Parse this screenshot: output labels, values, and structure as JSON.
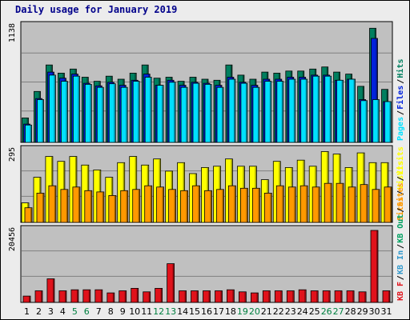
{
  "title": "Daily usage for January 2019",
  "colors": {
    "panel_bg": "#c0c0c0",
    "hits": "#007f5f",
    "files": "#0022dd",
    "pages": "#00e0ff",
    "visits": "#ffff00",
    "sites": "#ff9900",
    "kbin": "#3399cc",
    "kbout": "#00a060",
    "kbf": "#e0121b",
    "weekend_day": "#008040",
    "weekday": "#000000"
  },
  "chart_data": [
    {
      "type": "bar",
      "panel": "hits-files-pages",
      "categories": [
        "1",
        "2",
        "3",
        "4",
        "5",
        "6",
        "7",
        "8",
        "9",
        "10",
        "11",
        "12",
        "13",
        "14",
        "15",
        "16",
        "17",
        "18",
        "19",
        "20",
        "21",
        "22",
        "23",
        "24",
        "25",
        "26",
        "27",
        "28",
        "29",
        "30",
        "31"
      ],
      "y_max_label": "1138",
      "ylim": [
        0,
        1138
      ],
      "legend": [
        {
          "name": "Pages",
          "key": "pages"
        },
        {
          "name": "/",
          "key": "sep"
        },
        {
          "name": "Files",
          "key": "files"
        },
        {
          "name": "/",
          "key": "sep"
        },
        {
          "name": "Hits",
          "key": "hits"
        }
      ],
      "series": [
        {
          "name": "Hits",
          "values": [
            240,
            500,
            760,
            680,
            720,
            640,
            600,
            650,
            620,
            680,
            760,
            630,
            640,
            600,
            640,
            620,
            610,
            760,
            660,
            620,
            690,
            680,
            700,
            700,
            720,
            740,
            690,
            670,
            550,
            1120,
            520
          ]
        },
        {
          "name": "Files",
          "values": [
            180,
            430,
            690,
            630,
            670,
            580,
            555,
            590,
            560,
            610,
            670,
            560,
            610,
            560,
            590,
            580,
            560,
            640,
            590,
            560,
            620,
            620,
            640,
            640,
            660,
            660,
            610,
            620,
            420,
            1020,
            400
          ]
        },
        {
          "name": "Pages",
          "values": [
            170,
            420,
            660,
            600,
            650,
            570,
            540,
            575,
            540,
            600,
            640,
            560,
            590,
            540,
            580,
            570,
            540,
            620,
            580,
            540,
            600,
            600,
            620,
            620,
            650,
            650,
            610,
            620,
            410,
            420,
            400
          ]
        }
      ]
    },
    {
      "type": "bar",
      "panel": "visits-sites",
      "categories": [
        "1",
        "2",
        "3",
        "4",
        "5",
        "6",
        "7",
        "8",
        "9",
        "10",
        "11",
        "12",
        "13",
        "14",
        "15",
        "16",
        "17",
        "18",
        "19",
        "20",
        "21",
        "22",
        "23",
        "24",
        "25",
        "26",
        "27",
        "28",
        "29",
        "30",
        "31"
      ],
      "y_max_label": "295",
      "ylim": [
        0,
        295
      ],
      "legend": [
        {
          "name": "Sites",
          "key": "sites"
        },
        {
          "name": "/",
          "key": "sep"
        },
        {
          "name": "Visits",
          "key": "visits"
        }
      ],
      "series": [
        {
          "name": "Visits",
          "values": [
            80,
            185,
            270,
            250,
            270,
            235,
            215,
            185,
            245,
            270,
            235,
            260,
            210,
            245,
            200,
            225,
            230,
            260,
            230,
            230,
            175,
            250,
            225,
            255,
            230,
            290,
            280,
            225,
            285,
            245,
            245
          ]
        },
        {
          "name": "Sites",
          "values": [
            60,
            120,
            150,
            135,
            145,
            130,
            125,
            110,
            130,
            135,
            150,
            145,
            135,
            130,
            150,
            130,
            135,
            150,
            140,
            140,
            120,
            150,
            145,
            150,
            145,
            160,
            160,
            145,
            155,
            135,
            145
          ]
        }
      ]
    },
    {
      "type": "bar",
      "panel": "kbytes",
      "categories": [
        "1",
        "2",
        "3",
        "4",
        "5",
        "6",
        "7",
        "8",
        "9",
        "10",
        "11",
        "12",
        "13",
        "14",
        "15",
        "16",
        "17",
        "18",
        "19",
        "20",
        "21",
        "22",
        "23",
        "24",
        "25",
        "26",
        "27",
        "28",
        "29",
        "30",
        "31"
      ],
      "y_max_label": "20456",
      "ylim": [
        0,
        20456
      ],
      "legend": [
        {
          "name": "KB F",
          "key": "kbf"
        },
        {
          "name": "/",
          "key": "sep"
        },
        {
          "name": "KB In",
          "key": "kbin"
        },
        {
          "name": "/",
          "key": "sep"
        },
        {
          "name": "KB Out",
          "key": "kbout"
        },
        {
          "name": "/",
          "key": "sep"
        },
        {
          "name": "Sites",
          "key": "sites"
        },
        {
          "name": "/",
          "key": "sep"
        },
        {
          "name": "Visits",
          "key": "visits"
        }
      ],
      "series": [
        {
          "name": "KB F",
          "values": [
            1800,
            3300,
            6700,
            3300,
            3600,
            3600,
            3600,
            2700,
            3300,
            4000,
            3000,
            4000,
            11000,
            3300,
            3300,
            3300,
            3300,
            3600,
            3000,
            2700,
            3300,
            3300,
            3300,
            3600,
            3300,
            3300,
            3300,
            3300,
            3000,
            20456,
            3300
          ]
        }
      ]
    }
  ],
  "weekend_days": [
    "5",
    "6",
    "12",
    "13",
    "19",
    "20",
    "26",
    "27"
  ]
}
